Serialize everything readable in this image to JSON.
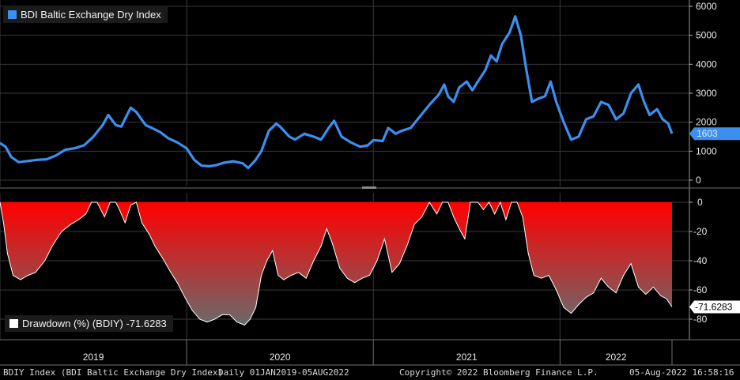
{
  "colors": {
    "line": "#3b8ff0",
    "fill_top": "#ff0000",
    "fill_bottom": "#6a6a6a",
    "grid": "#3a3a3a",
    "badge_dd": "#ffffff"
  },
  "top_panel": {
    "legend": "BDI Baltic Exchange Dry Index",
    "last_value_label": "1603"
  },
  "bottom_panel": {
    "legend": "Drawdown (%) (BDIY) -71.6283",
    "last_value_label": "-71.6283"
  },
  "footer": {
    "left": "BDIY Index (BDI Baltic Exchange Dry Index)",
    "range": "Daily 01JAN2019-05AUG2022",
    "center": "Copyright© 2022 Bloomberg Finance L.P.",
    "right": "05-Aug-2022 16:58:16"
  },
  "chart_data": [
    {
      "type": "line",
      "series": [
        {
          "name": "BDI Baltic Exchange Dry Index"
        }
      ],
      "x_start": 2019.0,
      "x_end": 2022.6,
      "ylim": [
        0,
        6000
      ],
      "yticks": [
        0,
        1000,
        2000,
        3000,
        4000,
        5000,
        6000
      ],
      "xticks": [
        "2019",
        "2020",
        "2021",
        "2022"
      ],
      "points": [
        [
          2019.0,
          1280
        ],
        [
          2019.03,
          1150
        ],
        [
          2019.06,
          800
        ],
        [
          2019.1,
          620
        ],
        [
          2019.15,
          660
        ],
        [
          2019.2,
          700
        ],
        [
          2019.25,
          720
        ],
        [
          2019.3,
          850
        ],
        [
          2019.35,
          1050
        ],
        [
          2019.4,
          1100
        ],
        [
          2019.45,
          1200
        ],
        [
          2019.5,
          1500
        ],
        [
          2019.55,
          1900
        ],
        [
          2019.58,
          2250
        ],
        [
          2019.62,
          1900
        ],
        [
          2019.65,
          1850
        ],
        [
          2019.68,
          2250
        ],
        [
          2019.7,
          2500
        ],
        [
          2019.73,
          2350
        ],
        [
          2019.78,
          1900
        ],
        [
          2019.82,
          1780
        ],
        [
          2019.86,
          1650
        ],
        [
          2019.9,
          1450
        ],
        [
          2019.95,
          1300
        ],
        [
          2020.0,
          1100
        ],
        [
          2020.04,
          700
        ],
        [
          2020.08,
          500
        ],
        [
          2020.12,
          480
        ],
        [
          2020.16,
          520
        ],
        [
          2020.2,
          600
        ],
        [
          2020.25,
          650
        ],
        [
          2020.3,
          580
        ],
        [
          2020.33,
          420
        ],
        [
          2020.37,
          700
        ],
        [
          2020.4,
          1000
        ],
        [
          2020.44,
          1700
        ],
        [
          2020.48,
          1950
        ],
        [
          2020.5,
          1850
        ],
        [
          2020.55,
          1500
        ],
        [
          2020.58,
          1400
        ],
        [
          2020.63,
          1600
        ],
        [
          2020.68,
          1500
        ],
        [
          2020.72,
          1400
        ],
        [
          2020.76,
          1800
        ],
        [
          2020.79,
          2050
        ],
        [
          2020.83,
          1500
        ],
        [
          2020.88,
          1300
        ],
        [
          2020.93,
          1150
        ],
        [
          2020.97,
          1200
        ],
        [
          2021.0,
          1380
        ],
        [
          2021.05,
          1350
        ],
        [
          2021.08,
          1800
        ],
        [
          2021.12,
          1600
        ],
        [
          2021.15,
          1700
        ],
        [
          2021.2,
          1800
        ],
        [
          2021.25,
          2200
        ],
        [
          2021.3,
          2600
        ],
        [
          2021.35,
          2950
        ],
        [
          2021.38,
          3300
        ],
        [
          2021.4,
          2900
        ],
        [
          2021.43,
          2700
        ],
        [
          2021.46,
          3200
        ],
        [
          2021.5,
          3400
        ],
        [
          2021.53,
          3100
        ],
        [
          2021.56,
          3400
        ],
        [
          2021.6,
          3800
        ],
        [
          2021.63,
          4300
        ],
        [
          2021.66,
          4100
        ],
        [
          2021.69,
          4700
        ],
        [
          2021.73,
          5100
        ],
        [
          2021.76,
          5650
        ],
        [
          2021.79,
          5000
        ],
        [
          2021.82,
          3800
        ],
        [
          2021.85,
          2700
        ],
        [
          2021.88,
          2800
        ],
        [
          2021.92,
          2900
        ],
        [
          2021.95,
          3400
        ],
        [
          2021.98,
          2700
        ],
        [
          2022.02,
          2000
        ],
        [
          2022.06,
          1400
        ],
        [
          2022.1,
          1500
        ],
        [
          2022.14,
          2100
        ],
        [
          2022.18,
          2200
        ],
        [
          2022.22,
          2700
        ],
        [
          2022.26,
          2600
        ],
        [
          2022.3,
          2100
        ],
        [
          2022.34,
          2300
        ],
        [
          2022.38,
          3000
        ],
        [
          2022.42,
          3300
        ],
        [
          2022.45,
          2700
        ],
        [
          2022.48,
          2250
        ],
        [
          2022.52,
          2450
        ],
        [
          2022.55,
          2100
        ],
        [
          2022.58,
          1950
        ],
        [
          2022.6,
          1603
        ]
      ]
    },
    {
      "type": "area",
      "series": [
        {
          "name": "Drawdown (%) (BDIY)"
        }
      ],
      "ylim": [
        -88,
        2
      ],
      "yticks": [
        0,
        -20,
        -40,
        -60,
        -80
      ],
      "xticks": [
        "2019",
        "2020",
        "2021",
        "2022"
      ],
      "points": [
        [
          2019.0,
          0
        ],
        [
          2019.02,
          -15
        ],
        [
          2019.04,
          -35
        ],
        [
          2019.07,
          -50
        ],
        [
          2019.11,
          -53
        ],
        [
          2019.15,
          -50
        ],
        [
          2019.19,
          -48
        ],
        [
          2019.24,
          -40
        ],
        [
          2019.28,
          -30
        ],
        [
          2019.33,
          -20
        ],
        [
          2019.38,
          -15
        ],
        [
          2019.42,
          -12
        ],
        [
          2019.46,
          -8
        ],
        [
          2019.49,
          0
        ],
        [
          2019.52,
          0
        ],
        [
          2019.54,
          -5
        ],
        [
          2019.56,
          -10
        ],
        [
          2019.59,
          0
        ],
        [
          2019.62,
          0
        ],
        [
          2019.64,
          -5
        ],
        [
          2019.67,
          -14
        ],
        [
          2019.7,
          -2
        ],
        [
          2019.73,
          0
        ],
        [
          2019.76,
          -14
        ],
        [
          2019.8,
          -22
        ],
        [
          2019.83,
          -30
        ],
        [
          2019.87,
          -38
        ],
        [
          2019.91,
          -47
        ],
        [
          2019.95,
          -55
        ],
        [
          2019.99,
          -65
        ],
        [
          2020.03,
          -74
        ],
        [
          2020.07,
          -80
        ],
        [
          2020.11,
          -82
        ],
        [
          2020.15,
          -80
        ],
        [
          2020.19,
          -77
        ],
        [
          2020.23,
          -77
        ],
        [
          2020.27,
          -82
        ],
        [
          2020.31,
          -84
        ],
        [
          2020.34,
          -80
        ],
        [
          2020.37,
          -72
        ],
        [
          2020.4,
          -50
        ],
        [
          2020.43,
          -40
        ],
        [
          2020.46,
          -33
        ],
        [
          2020.49,
          -50
        ],
        [
          2020.52,
          -53
        ],
        [
          2020.56,
          -50
        ],
        [
          2020.6,
          -48
        ],
        [
          2020.64,
          -52
        ],
        [
          2020.68,
          -40
        ],
        [
          2020.72,
          -30
        ],
        [
          2020.75,
          -18
        ],
        [
          2020.78,
          -28
        ],
        [
          2020.82,
          -45
        ],
        [
          2020.86,
          -52
        ],
        [
          2020.9,
          -55
        ],
        [
          2020.94,
          -52
        ],
        [
          2020.98,
          -50
        ],
        [
          2021.02,
          -40
        ],
        [
          2021.06,
          -25
        ],
        [
          2021.1,
          -48
        ],
        [
          2021.14,
          -42
        ],
        [
          2021.18,
          -30
        ],
        [
          2021.22,
          -15
        ],
        [
          2021.26,
          -10
        ],
        [
          2021.3,
          0
        ],
        [
          2021.34,
          -8
        ],
        [
          2021.37,
          0
        ],
        [
          2021.4,
          0
        ],
        [
          2021.43,
          -10
        ],
        [
          2021.46,
          -18
        ],
        [
          2021.49,
          -25
        ],
        [
          2021.52,
          0
        ],
        [
          2021.56,
          0
        ],
        [
          2021.59,
          -5
        ],
        [
          2021.62,
          0
        ],
        [
          2021.65,
          -8
        ],
        [
          2021.68,
          0
        ],
        [
          2021.71,
          -12
        ],
        [
          2021.74,
          0
        ],
        [
          2021.77,
          0
        ],
        [
          2021.8,
          -10
        ],
        [
          2021.83,
          -35
        ],
        [
          2021.86,
          -50
        ],
        [
          2021.9,
          -52
        ],
        [
          2021.94,
          -50
        ],
        [
          2021.98,
          -60
        ],
        [
          2022.02,
          -72
        ],
        [
          2022.06,
          -76
        ],
        [
          2022.1,
          -70
        ],
        [
          2022.14,
          -65
        ],
        [
          2022.18,
          -62
        ],
        [
          2022.22,
          -52
        ],
        [
          2022.26,
          -58
        ],
        [
          2022.3,
          -62
        ],
        [
          2022.34,
          -50
        ],
        [
          2022.38,
          -42
        ],
        [
          2022.42,
          -58
        ],
        [
          2022.46,
          -63
        ],
        [
          2022.5,
          -58
        ],
        [
          2022.54,
          -64
        ],
        [
          2022.57,
          -66
        ],
        [
          2022.6,
          -71.6
        ]
      ]
    }
  ]
}
